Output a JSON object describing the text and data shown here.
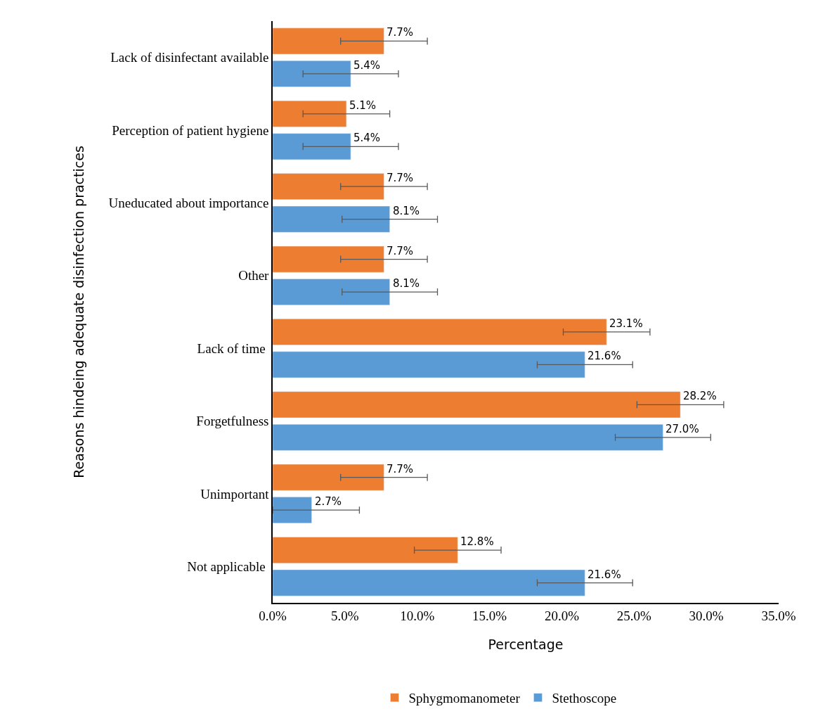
{
  "chart_data": {
    "type": "bar",
    "orientation": "horizontal",
    "xlabel": "Percentage",
    "ylabel": "Reasons hindeing adequate disinfection practices",
    "categories": [
      "Lack of disinfectant available",
      "Perception of patient hygiene",
      "Uneducated about importance",
      "Other",
      "Lack of time ",
      "Forgetfulness",
      "Unimportant",
      "Not applicable "
    ],
    "series": [
      {
        "name": "Sphygmomanometer",
        "color": "#ed7d31",
        "values": [
          7.7,
          5.1,
          7.7,
          7.7,
          23.1,
          28.2,
          7.7,
          12.8
        ],
        "errors": [
          3.0,
          3.0,
          3.0,
          3.0,
          3.0,
          3.0,
          3.0,
          3.0
        ],
        "value_labels": [
          "7.7%",
          "5.1%",
          "7.7%",
          "7.7%",
          "23.1%",
          "28.2%",
          "7.7%",
          "12.8%"
        ]
      },
      {
        "name": "Stethoscope",
        "color": "#5b9bd5",
        "values": [
          5.4,
          5.4,
          8.1,
          8.1,
          21.6,
          27.0,
          2.7,
          21.6
        ],
        "errors": [
          3.3,
          3.3,
          3.3,
          3.3,
          3.3,
          3.3,
          [
            0,
            6.0
          ],
          3.3
        ],
        "value_labels": [
          "5.4%",
          "5.4%",
          "8.1%",
          "8.1%",
          "21.6%",
          "27.0%",
          "2.7%",
          "21.6%"
        ]
      }
    ],
    "xlim": [
      0,
      35
    ],
    "xticks": [
      {
        "value": 0,
        "label": "0.0%"
      },
      {
        "value": 5,
        "label": "5.0%"
      },
      {
        "value": 10,
        "label": "10.0%"
      },
      {
        "value": 15,
        "label": "15.0%"
      },
      {
        "value": 20,
        "label": "20.0%"
      },
      {
        "value": 25,
        "label": "25.0%"
      },
      {
        "value": 30,
        "label": "30.0%"
      },
      {
        "value": 35,
        "label": "35.0%"
      }
    ],
    "legend": "bottom"
  }
}
